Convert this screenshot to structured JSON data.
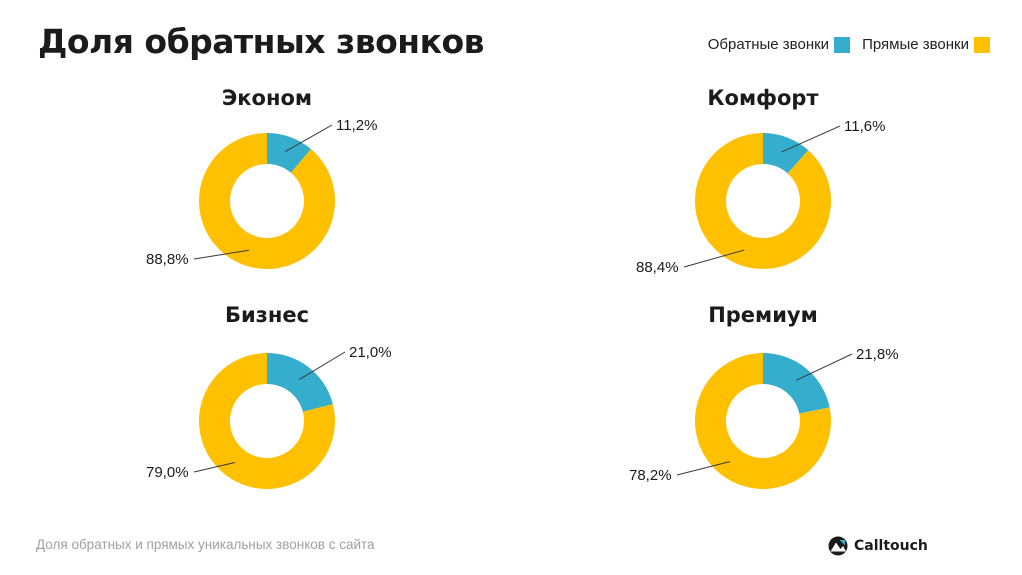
{
  "page": {
    "title": "Доля обратных звонков",
    "footer": "Доля обратных и прямых уникальных звонков с сайта",
    "brand": "Calltouch"
  },
  "legend": {
    "items": [
      {
        "label": "Обратные звонки",
        "color": "#35AECE"
      },
      {
        "label": "Прямые звонки",
        "color": "#FFC000"
      }
    ]
  },
  "colors": {
    "callback": "#35AECE",
    "direct": "#FFC000"
  },
  "chart_data": [
    {
      "type": "pie",
      "title": "Эконом",
      "categories": [
        "Обратные звонки",
        "Прямые звонки"
      ],
      "values": [
        11.2,
        88.8
      ],
      "labels": [
        "11,2%",
        "88,8%"
      ]
    },
    {
      "type": "pie",
      "title": "Комфорт",
      "categories": [
        "Обратные звонки",
        "Прямые звонки"
      ],
      "values": [
        11.6,
        88.4
      ],
      "labels": [
        "11,6%",
        "88,4%"
      ]
    },
    {
      "type": "pie",
      "title": "Бизнес",
      "categories": [
        "Обратные звонки",
        "Прямые звонки"
      ],
      "values": [
        21.0,
        79.0
      ],
      "labels": [
        "21,0%",
        "79,0%"
      ]
    },
    {
      "type": "pie",
      "title": "Премиум",
      "categories": [
        "Обратные звонки",
        "Прямые звонки"
      ],
      "values": [
        21.8,
        78.2
      ],
      "labels": [
        "21,8%",
        "78,2%"
      ]
    }
  ]
}
